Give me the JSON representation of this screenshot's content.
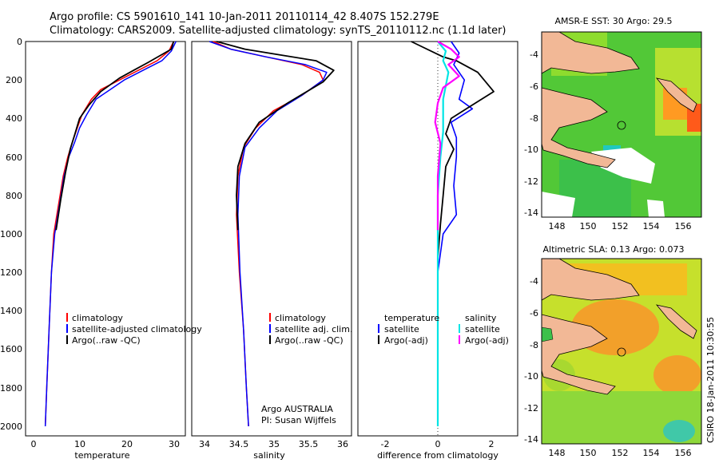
{
  "header": {
    "title_line1": "Argo profile: CS 5901610_141 10-Jan-2011 20110114_42 8.407S 152.279E",
    "title_line2": "Climatology: CARS2009. Satellite-adjusted climatology: synTS_20110112.nc (1.1d later)"
  },
  "colors": {
    "climatology": "#ff0000",
    "satellite": "#0000ff",
    "argo": "#000000",
    "sat_salinity": "#00e5e5",
    "argo_salinity": "#ff00ff",
    "land": "#f2b896"
  },
  "panel1": {
    "xlabel": "temperature",
    "xticks": [
      "0",
      "10",
      "20",
      "30"
    ],
    "legend": [
      "climatology",
      "satellite-adjusted climatology",
      "Argo(..raw -QC)"
    ]
  },
  "panel2": {
    "xlabel": "salinity",
    "xticks": [
      "34",
      "34.5",
      "35",
      "35.5",
      "36"
    ],
    "legend": [
      "climatology",
      "satellite adj. clim.",
      "Argo(..raw -QC)"
    ],
    "credit1": "Argo AUSTRALIA",
    "credit2": "PI: Susan Wijffels"
  },
  "panel3": {
    "xlabel": "difference from climatology",
    "xticks": [
      "-2",
      "0",
      "2"
    ],
    "legend_temp_head": "temperature",
    "legend_sal_head": "salinity",
    "legend_temp": [
      "satellite",
      "Argo(-adj)"
    ],
    "legend_sal": [
      "satellite",
      "Argo(-adj)"
    ]
  },
  "yticks": [
    "0",
    "200",
    "400",
    "600",
    "800",
    "1000",
    "1200",
    "1400",
    "1600",
    "1800",
    "2000"
  ],
  "map1": {
    "title": "AMSR-E SST: 30 Argo: 29.5",
    "xticks": [
      "148",
      "150",
      "152",
      "154",
      "156"
    ],
    "yticks": [
      "-4",
      "-6",
      "-8",
      "-10",
      "-12",
      "-14"
    ]
  },
  "map2": {
    "title": "Altimetric SLA: 0.13 Argo: 0.073",
    "xticks": [
      "148",
      "150",
      "152",
      "154",
      "156"
    ],
    "yticks": [
      "-4",
      "-6",
      "-8",
      "-10",
      "-12",
      "-14"
    ]
  },
  "footer_stamp": "CSIRO 18-Jan-2011 10:30:55",
  "chart_data": [
    {
      "type": "line",
      "xlabel": "temperature",
      "xlim": [
        -2,
        32
      ],
      "ylim": [
        2050,
        0
      ],
      "series": [
        {
          "name": "climatology",
          "x": [
            29.5,
            28.5,
            26,
            22,
            18,
            14,
            12,
            10,
            9,
            8,
            7,
            6,
            5,
            4,
            3.5,
            3,
            2.5,
            2.2
          ],
          "y": [
            0,
            50,
            100,
            150,
            200,
            250,
            300,
            380,
            450,
            520,
            600,
            700,
            850,
            1000,
            1200,
            1500,
            1800,
            2000
          ]
        },
        {
          "name": "satellite-adjusted climatology",
          "x": [
            30,
            29,
            27,
            23,
            19,
            16,
            13,
            11,
            9.5,
            8.5,
            7.2,
            6.2,
            5.2,
            4.2,
            3.5,
            3,
            2.5,
            2.2
          ],
          "y": [
            0,
            50,
            100,
            150,
            200,
            250,
            300,
            380,
            450,
            520,
            600,
            700,
            850,
            1000,
            1200,
            1500,
            1800,
            2000
          ]
        },
        {
          "name": "Argo(..raw -QC)",
          "x": [
            29.5,
            29,
            24,
            21,
            18,
            14,
            11.5,
            9.5,
            8.5,
            7.5,
            6.5,
            5.5,
            4.5
          ],
          "y": [
            0,
            40,
            110,
            150,
            190,
            260,
            330,
            400,
            480,
            560,
            680,
            820,
            980
          ]
        }
      ]
    },
    {
      "type": "line",
      "xlabel": "salinity",
      "xlim": [
        33.85,
        36.1
      ],
      "ylim": [
        2050,
        0
      ],
      "series": [
        {
          "name": "climatology",
          "x": [
            34.15,
            34.4,
            34.9,
            35.4,
            35.65,
            35.7,
            35.4,
            35.0,
            34.75,
            34.58,
            34.5,
            34.48,
            34.52,
            34.58,
            34.62,
            34.65
          ],
          "y": [
            0,
            40,
            80,
            120,
            160,
            200,
            280,
            360,
            450,
            550,
            700,
            900,
            1200,
            1500,
            1800,
            2000
          ]
        },
        {
          "name": "satellite adj. clim.",
          "x": [
            34.1,
            34.4,
            34.9,
            35.45,
            35.75,
            35.7,
            35.4,
            35.05,
            34.8,
            34.6,
            34.52,
            34.5,
            34.53,
            34.58,
            34.62,
            34.65
          ],
          "y": [
            0,
            40,
            80,
            120,
            160,
            200,
            280,
            360,
            450,
            550,
            700,
            900,
            1200,
            1500,
            1800,
            2000
          ]
        },
        {
          "name": "Argo(..raw -QC)",
          "x": [
            34.2,
            34.6,
            35.1,
            35.6,
            35.85,
            35.7,
            35.2,
            34.8,
            34.6,
            34.5,
            34.48,
            34.5
          ],
          "y": [
            0,
            40,
            70,
            100,
            150,
            210,
            320,
            420,
            530,
            650,
            800,
            980
          ]
        }
      ]
    },
    {
      "type": "line",
      "xlabel": "difference from climatology",
      "xlim": [
        -3,
        3
      ],
      "ylim": [
        2050,
        0
      ],
      "series": [
        {
          "name": "temperature satellite",
          "x": [
            0.5,
            0.8,
            0.6,
            1.0,
            0.8,
            1.3,
            0.5,
            0.7,
            0.7,
            0.6,
            0.7,
            0.2,
            0,
            0,
            0
          ],
          "y": [
            0,
            60,
            120,
            200,
            300,
            350,
            420,
            500,
            600,
            750,
            900,
            1000,
            1200,
            1500,
            2000
          ]
        },
        {
          "name": "temperature Argo(-adj)",
          "x": [
            -1.0,
            0.2,
            0.7,
            1.5,
            2.1,
            1.3,
            0.5,
            0.3,
            0.6,
            0.3,
            0.2,
            0.1,
            0
          ],
          "y": [
            0,
            80,
            100,
            160,
            260,
            330,
            400,
            480,
            560,
            650,
            800,
            950,
            1130
          ]
        },
        {
          "name": "salinity satellite",
          "x": [
            0.0,
            0.3,
            0.2,
            0.4,
            0.3,
            0.2,
            0.2,
            0.2,
            0.1,
            0.0,
            0.0,
            0.0
          ],
          "y": [
            0,
            50,
            100,
            160,
            230,
            300,
            380,
            470,
            600,
            800,
            1200,
            2000
          ]
        },
        {
          "name": "salinity Argo(-adj)",
          "x": [
            0.0,
            0.5,
            0.8,
            0.4,
            0.8,
            0.2,
            0.0,
            -0.1,
            0.1,
            0.0,
            0.0
          ],
          "y": [
            0,
            40,
            80,
            120,
            180,
            240,
            320,
            420,
            530,
            700,
            980
          ]
        }
      ]
    }
  ]
}
